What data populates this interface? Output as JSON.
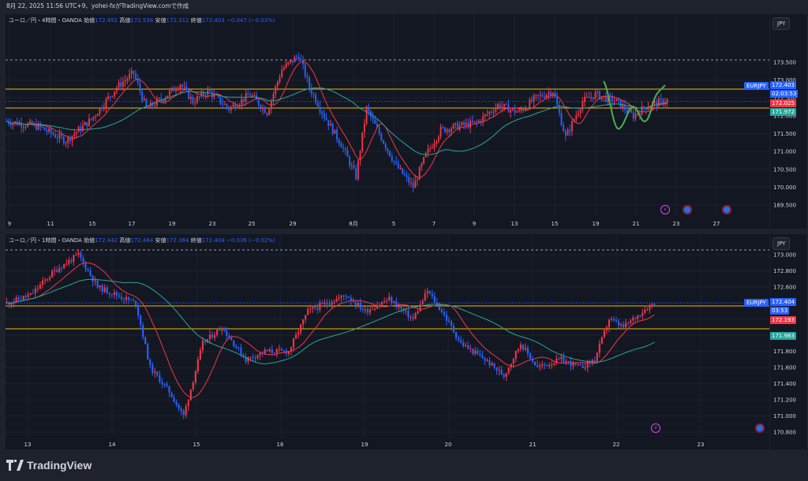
{
  "header_text": "8月 22, 2025 11:56 UTC+9、yohei-fxがTradingView.comで作成",
  "brand": "TradingView",
  "currency": "JPY",
  "colors": {
    "up": "#f23645",
    "down": "#2962ff",
    "ma_fast": "#f23645",
    "ma_slow": "#26a69a",
    "level": "#f0b90b",
    "bg": "#131722"
  },
  "top": {
    "legend": {
      "symbol": "ユーロ／円・4時間・OANDA",
      "open_label": "始値",
      "open": "172.452",
      "high_label": "高値",
      "high": "172.536",
      "low_label": "安値",
      "low": "172.312",
      "close_label": "終値",
      "close": "172.403",
      "change": "−0.047 (−0.03%)"
    },
    "price_ticks": [
      "173.500",
      "173.000",
      "172.500",
      "172.000",
      "171.500",
      "171.000",
      "170.500",
      "170.000",
      "169.500"
    ],
    "date_ticks": [
      "9",
      "11",
      "15",
      "17",
      "19",
      "23",
      "25",
      "29",
      "8月",
      "5",
      "7",
      "9",
      "13",
      "15",
      "19",
      "21",
      "23",
      "27"
    ],
    "pair_tag": "EURJPY",
    "last_price": "172.403",
    "countdown": "02:03:53",
    "ma_fast_value": "172.025",
    "ma_slow_value": "171.972"
  },
  "bottom": {
    "legend": {
      "symbol": "ユーロ／円・1時間・OANDA",
      "open_label": "始値",
      "open": "172.442",
      "high_label": "高値",
      "high": "172.464",
      "low_label": "安値",
      "low": "172.364",
      "close_label": "終値",
      "close": "172.404",
      "change": "−0.036 (−0.02%)"
    },
    "price_ticks": [
      "173.000",
      "172.800",
      "172.600",
      "172.400",
      "172.200",
      "172.000",
      "171.800",
      "171.600",
      "171.400",
      "171.200",
      "171.000",
      "170.800"
    ],
    "date_ticks": [
      "13",
      "14",
      "15",
      "16",
      "19",
      "20",
      "21",
      "22",
      "23"
    ],
    "pair_tag": "EURJPY",
    "last_price": "172.404",
    "countdown": "03:53",
    "ma_fast_value": "172.193",
    "ma_slow_value": "171.983"
  }
}
